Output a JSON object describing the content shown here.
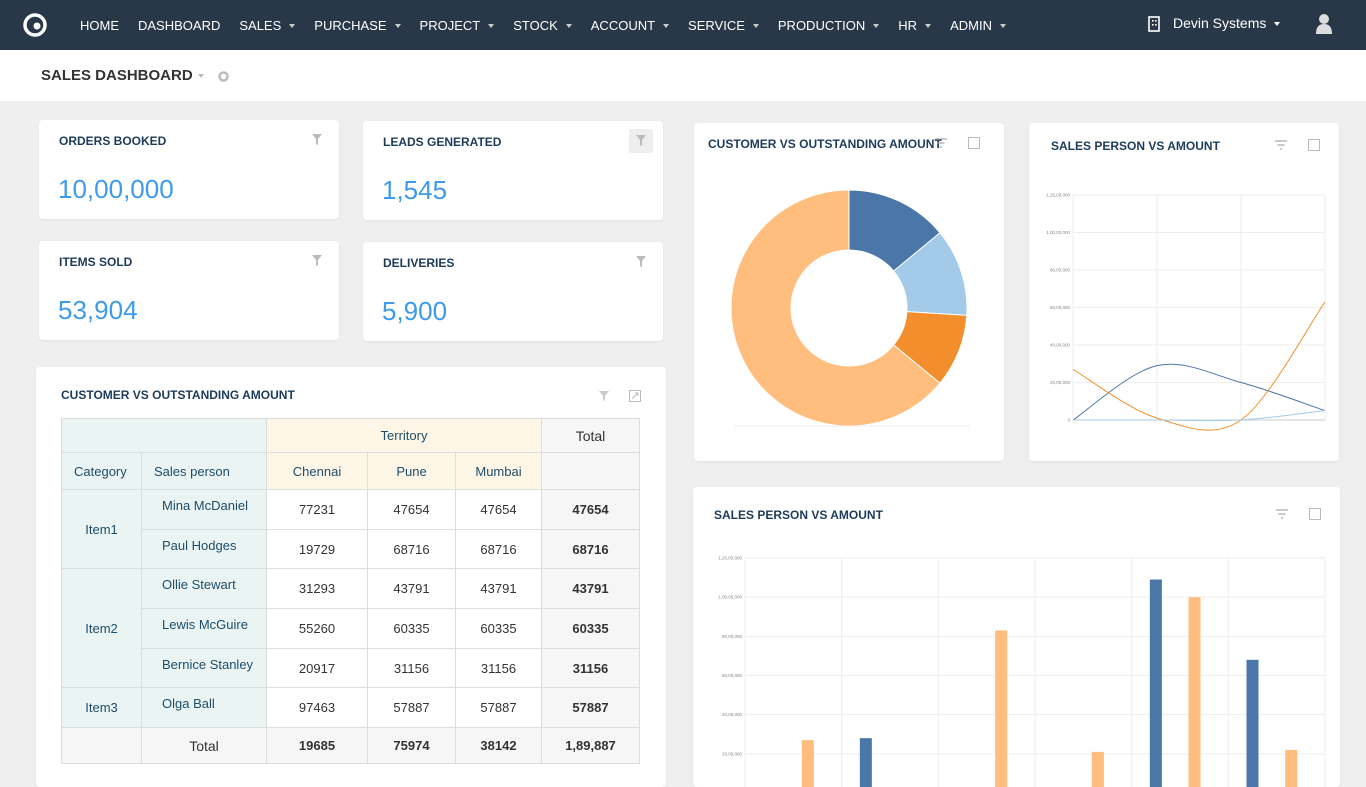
{
  "nav": {
    "items": [
      {
        "label": "HOME",
        "dropdown": false
      },
      {
        "label": "DASHBOARD",
        "dropdown": false
      },
      {
        "label": "SALES",
        "dropdown": true
      },
      {
        "label": "PURCHASE",
        "dropdown": true
      },
      {
        "label": "PROJECT",
        "dropdown": true
      },
      {
        "label": "STOCK",
        "dropdown": true
      },
      {
        "label": "ACCOUNT",
        "dropdown": true
      },
      {
        "label": "SERVICE",
        "dropdown": true
      },
      {
        "label": "PRODUCTION",
        "dropdown": true
      },
      {
        "label": "HR",
        "dropdown": true
      },
      {
        "label": "ADMIN",
        "dropdown": true
      }
    ],
    "company": "Devin Systems"
  },
  "header": {
    "title": "SALES DASHBOARD"
  },
  "kpis": [
    {
      "title": "ORDERS BOOKED",
      "value": "10,00,000"
    },
    {
      "title": "LEADS GENERATED",
      "value": "1,545"
    },
    {
      "title": "ITEMS SOLD",
      "value": "53,904"
    },
    {
      "title": "DELIVERIES",
      "value": "5,900"
    }
  ],
  "table": {
    "title": "CUSTOMER VS OUTSTANDING AMOUNT",
    "group_header": "Territory",
    "total_header": "Total",
    "columns": [
      "Category",
      "Sales person",
      "Chennai",
      "Pune",
      "Mumbai"
    ],
    "groups": [
      {
        "category": "Item1",
        "rows": [
          {
            "person": "Mina McDaniel",
            "values": [
              77231,
              47654,
              47654
            ],
            "total": 47654
          },
          {
            "person": "Paul Hodges",
            "values": [
              19729,
              68716,
              68716
            ],
            "total": 68716
          }
        ]
      },
      {
        "category": "Item2",
        "rows": [
          {
            "person": "Ollie Stewart",
            "values": [
              31293,
              43791,
              43791
            ],
            "total": 43791
          },
          {
            "person": "Lewis McGuire",
            "values": [
              55260,
              60335,
              60335
            ],
            "total": 60335
          },
          {
            "person": "Bernice Stanley",
            "values": [
              20917,
              31156,
              31156
            ],
            "total": 31156
          }
        ]
      },
      {
        "category": "Item3",
        "rows": [
          {
            "person": "Olga Ball",
            "values": [
              97463,
              57887,
              57887
            ],
            "total": 57887
          }
        ]
      }
    ],
    "total_row": {
      "label": "Total",
      "values": [
        19685,
        75974,
        38142
      ],
      "total": "1,89,887"
    }
  },
  "charts": [
    {
      "type": "donut",
      "title": "CUSTOMER VS OUTSTANDING AMOUNT",
      "values": [
        14,
        12,
        10,
        64
      ],
      "colors": [
        "#4a76a8",
        "#a3cbe9",
        "#f28e2b",
        "#ffbe7d"
      ]
    },
    {
      "type": "line",
      "title": "SALES PERSON VS AMOUNT",
      "ylim": [
        0,
        12000000
      ],
      "grid": true,
      "yticks": [
        0,
        {
          "value": 2000000,
          "label": "20,00,000"
        },
        {
          "value": 4000000,
          "label": "40,00,000"
        },
        {
          "value": 6000000,
          "label": "60,00,000"
        },
        {
          "value": 8000000,
          "label": "80,00,000"
        },
        {
          "value": 10000000,
          "label": "1,00,00,000"
        },
        {
          "value": 12000000,
          "label": "1,20,00,000"
        }
      ],
      "series": [
        {
          "color": "#4a76a8",
          "values": [
            0,
            2900000,
            2000000,
            500000
          ]
        },
        {
          "color": "#f28e2b",
          "values": [
            2700000,
            100000,
            0,
            6300000
          ]
        },
        {
          "color": "#a3cbe9",
          "values": [
            0,
            0,
            0,
            500000
          ]
        }
      ]
    },
    {
      "type": "bar",
      "title": "SALES PERSON VS AMOUNT",
      "ylim": [
        0,
        12000000
      ],
      "grid": true,
      "yticks": [
        0,
        {
          "value": 2000000,
          "label": "20,00,000"
        },
        {
          "value": 4000000,
          "label": "40,00,000"
        },
        {
          "value": 6000000,
          "label": "60,00,000"
        },
        {
          "value": 8000000,
          "label": "80,00,000"
        },
        {
          "value": 10000000,
          "label": "1,00,00,000"
        },
        {
          "value": 12000000,
          "label": "1,20,00,000"
        }
      ],
      "series": [
        {
          "color": "#4a76a8",
          "values": [
            0,
            2800000,
            0,
            0,
            10900000,
            6800000
          ]
        },
        {
          "color": "#ffbe7d",
          "values": [
            2700000,
            0,
            8300000,
            2100000,
            10000000,
            2200000
          ]
        }
      ]
    }
  ]
}
